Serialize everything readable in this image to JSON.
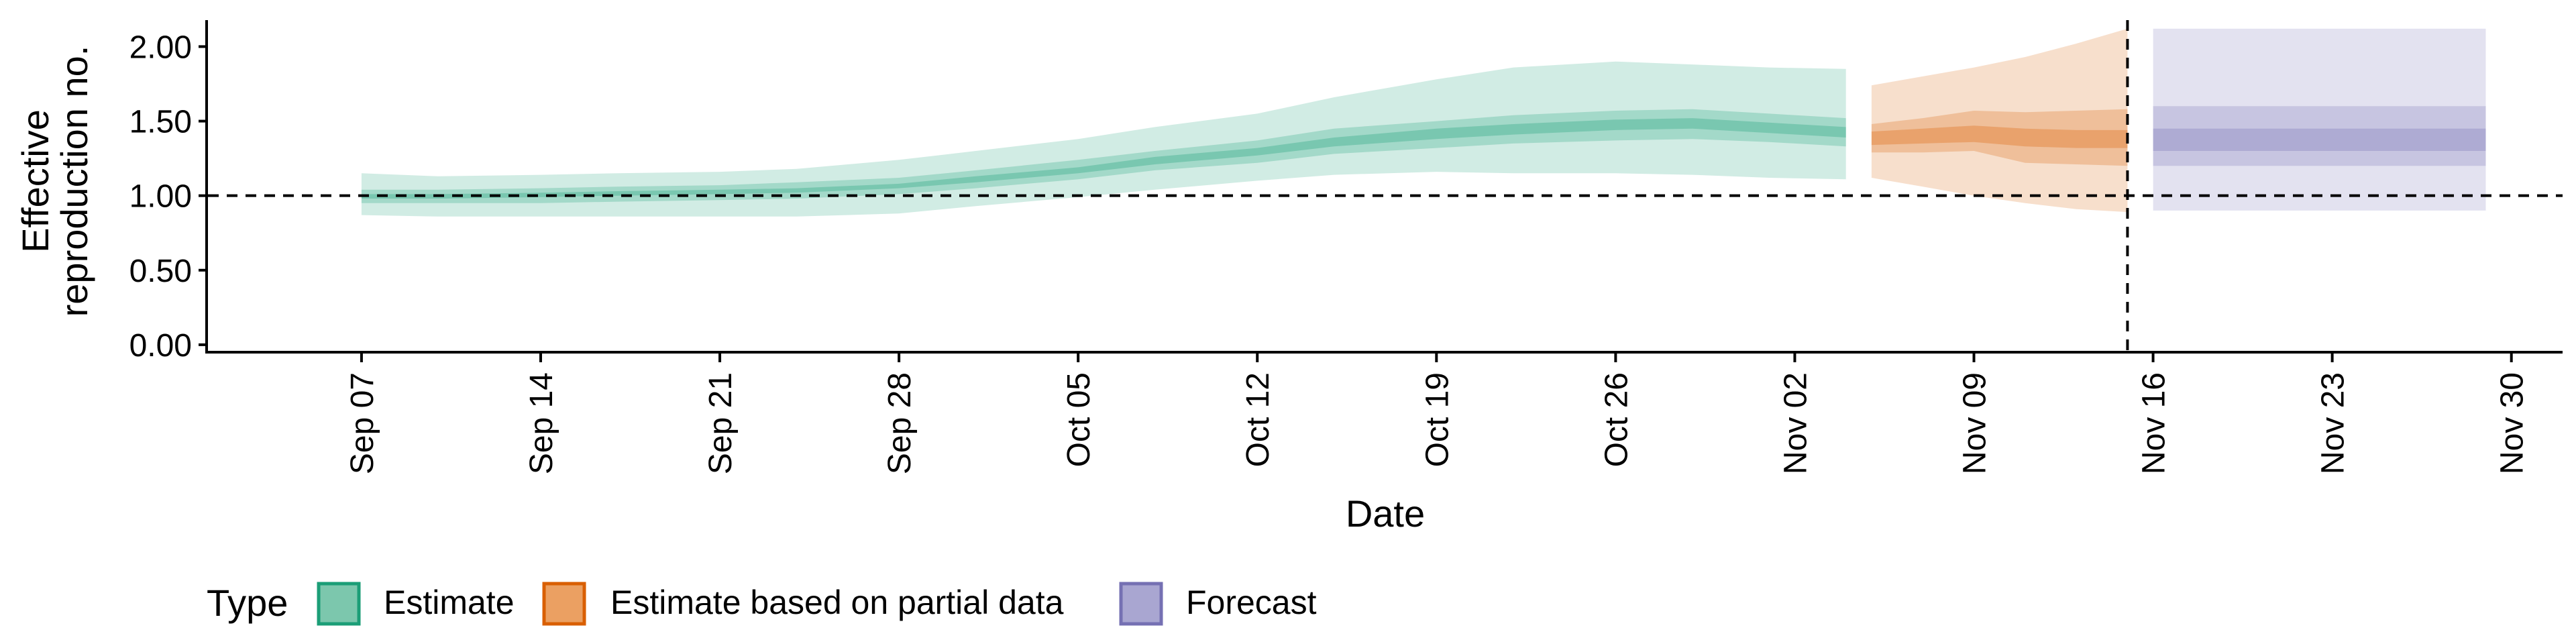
{
  "chart_data": {
    "type": "area",
    "ylabel": [
      "Effective",
      "reproduction no."
    ],
    "xlabel": "Date",
    "y_ticks": [
      "0.00",
      "0.50",
      "1.00",
      "1.50",
      "2.00"
    ],
    "ylim": [
      -0.05,
      2.2
    ],
    "xlim": [
      "2020-09-01",
      "2020-12-02"
    ],
    "x_ticks": [
      {
        "date": "2020-09-07",
        "label": "Sep 07"
      },
      {
        "date": "2020-09-14",
        "label": "Sep 14"
      },
      {
        "date": "2020-09-21",
        "label": "Sep 21"
      },
      {
        "date": "2020-09-28",
        "label": "Sep 28"
      },
      {
        "date": "2020-10-05",
        "label": "Oct 05"
      },
      {
        "date": "2020-10-12",
        "label": "Oct 12"
      },
      {
        "date": "2020-10-19",
        "label": "Oct 19"
      },
      {
        "date": "2020-10-26",
        "label": "Oct 26"
      },
      {
        "date": "2020-11-02",
        "label": "Nov 02"
      },
      {
        "date": "2020-11-09",
        "label": "Nov 09"
      },
      {
        "date": "2020-11-16",
        "label": "Nov 16"
      },
      {
        "date": "2020-11-23",
        "label": "Nov 23"
      },
      {
        "date": "2020-11-30",
        "label": "Nov 30"
      }
    ],
    "reference_lines": {
      "horizontal_y": 1.0,
      "vertical_date": "2020-11-15",
      "style": "dashed"
    },
    "grid": false,
    "legend": {
      "title": "Type",
      "position": "bottom",
      "entries": [
        {
          "label": "Estimate",
          "fill": "#7cc7ad",
          "stroke": "#1b9e77"
        },
        {
          "label": "Estimate based on partial data",
          "fill": "#eba062",
          "stroke": "#d95f02"
        },
        {
          "label": "Forecast",
          "fill": "#a9a6d1",
          "stroke": "#7570b3"
        }
      ]
    },
    "series": [
      {
        "name": "Estimate",
        "color": "#1b9e77",
        "x": [
          "2020-09-07",
          "2020-09-10",
          "2020-09-14",
          "2020-09-17",
          "2020-09-21",
          "2020-09-24",
          "2020-09-28",
          "2020-10-01",
          "2020-10-05",
          "2020-10-08",
          "2020-10-12",
          "2020-10-15",
          "2020-10-19",
          "2020-10-22",
          "2020-10-26",
          "2020-10-29",
          "2020-11-01",
          "2020-11-04"
        ],
        "median": [
          0.99,
          0.99,
          1.0,
          1.01,
          1.02,
          1.03,
          1.06,
          1.11,
          1.17,
          1.23,
          1.29,
          1.36,
          1.41,
          1.44,
          1.47,
          1.48,
          1.45,
          1.42
        ],
        "lower_90": [
          0.87,
          0.86,
          0.86,
          0.86,
          0.86,
          0.86,
          0.88,
          0.93,
          0.99,
          1.04,
          1.1,
          1.14,
          1.16,
          1.15,
          1.15,
          1.14,
          1.12,
          1.11
        ],
        "upper_90": [
          1.15,
          1.13,
          1.14,
          1.15,
          1.16,
          1.18,
          1.24,
          1.3,
          1.38,
          1.46,
          1.55,
          1.66,
          1.78,
          1.86,
          1.9,
          1.88,
          1.86,
          1.85
        ],
        "lower_50": [
          0.95,
          0.95,
          0.95,
          0.96,
          0.97,
          0.98,
          1.01,
          1.05,
          1.11,
          1.17,
          1.22,
          1.28,
          1.32,
          1.35,
          1.37,
          1.38,
          1.36,
          1.33
        ],
        "upper_50": [
          1.04,
          1.04,
          1.05,
          1.06,
          1.07,
          1.09,
          1.12,
          1.17,
          1.24,
          1.3,
          1.37,
          1.45,
          1.5,
          1.54,
          1.57,
          1.58,
          1.55,
          1.52
        ],
        "lower_20": [
          0.98,
          0.98,
          0.99,
          1.0,
          1.01,
          1.02,
          1.05,
          1.09,
          1.15,
          1.21,
          1.27,
          1.33,
          1.38,
          1.41,
          1.44,
          1.45,
          1.42,
          1.39
        ],
        "upper_20": [
          1.01,
          1.01,
          1.02,
          1.03,
          1.04,
          1.05,
          1.08,
          1.13,
          1.19,
          1.26,
          1.32,
          1.39,
          1.45,
          1.48,
          1.51,
          1.52,
          1.49,
          1.46
        ]
      },
      {
        "name": "Estimate based on partial data",
        "color": "#d95f02",
        "x": [
          "2020-11-05",
          "2020-11-07",
          "2020-11-09",
          "2020-11-11",
          "2020-11-13",
          "2020-11-15"
        ],
        "median": [
          1.38,
          1.4,
          1.42,
          1.4,
          1.38,
          1.38
        ],
        "lower_90": [
          1.12,
          1.06,
          1.0,
          0.95,
          0.91,
          0.89
        ],
        "upper_90": [
          1.74,
          1.8,
          1.86,
          1.93,
          2.02,
          2.12
        ],
        "lower_50": [
          1.29,
          1.29,
          1.3,
          1.22,
          1.21,
          1.2
        ],
        "upper_50": [
          1.48,
          1.52,
          1.57,
          1.56,
          1.57,
          1.58
        ],
        "lower_20": [
          1.34,
          1.35,
          1.36,
          1.33,
          1.32,
          1.32
        ],
        "upper_20": [
          1.43,
          1.45,
          1.47,
          1.45,
          1.44,
          1.44
        ]
      },
      {
        "name": "Forecast",
        "color": "#7570b3",
        "x": [
          "2020-11-16",
          "2020-11-29"
        ],
        "median": [
          1.38,
          1.38
        ],
        "lower_90": [
          0.9,
          0.9
        ],
        "upper_90": [
          2.12,
          2.12
        ],
        "lower_50": [
          1.2,
          1.2
        ],
        "upper_50": [
          1.6,
          1.6
        ],
        "lower_20": [
          1.3,
          1.3
        ],
        "upper_20": [
          1.45,
          1.45
        ]
      }
    ]
  }
}
